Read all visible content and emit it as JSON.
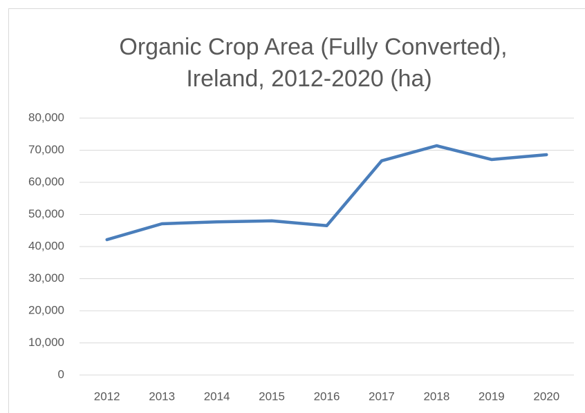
{
  "chart_data": {
    "type": "line",
    "title": [
      "Organic Crop Area (Fully Converted),",
      "Ireland, 2012-2020 (ha)"
    ],
    "categories": [
      "2012",
      "2013",
      "2014",
      "2015",
      "2016",
      "2017",
      "2018",
      "2019",
      "2020"
    ],
    "values": [
      42150,
      47100,
      47700,
      48000,
      46500,
      66700,
      71400,
      67100,
      68600
    ],
    "color": "#4a7ebb",
    "ylim": [
      0,
      80000
    ],
    "yticks": [
      0,
      {
        "value": 10000,
        "label": "10,000"
      },
      {
        "value": 20000,
        "label": "20,000"
      },
      {
        "value": 30000,
        "label": "30,000"
      },
      {
        "value": 40000,
        "label": "40,000"
      },
      {
        "value": 50000,
        "label": "50,000"
      },
      {
        "value": 60000,
        "label": "60,000"
      },
      {
        "value": 70000,
        "label": "70,000"
      },
      {
        "value": 80000,
        "label": "80,000"
      }
    ],
    "grid": true
  }
}
